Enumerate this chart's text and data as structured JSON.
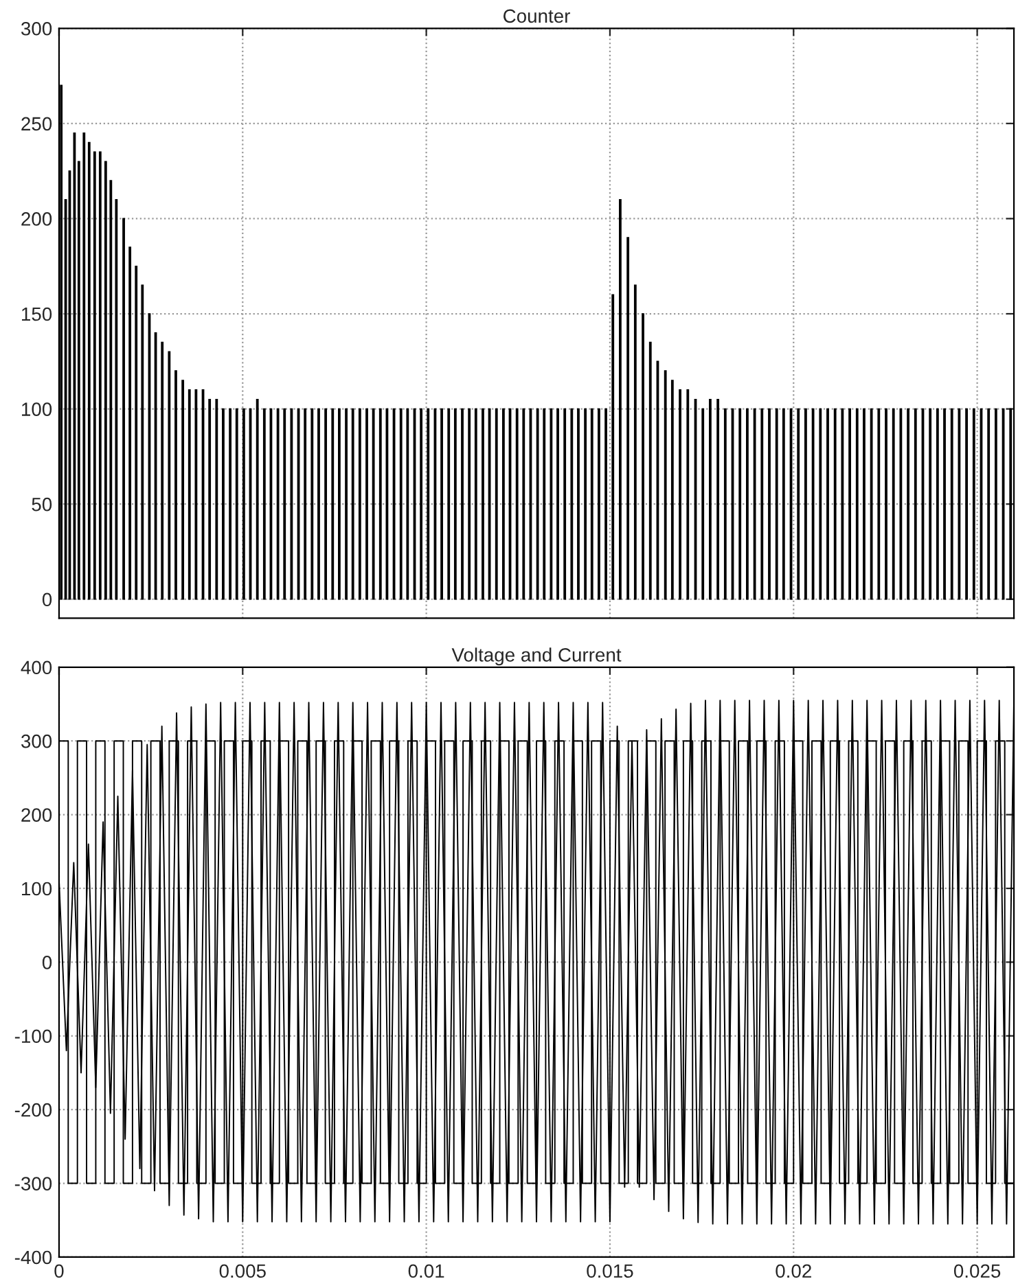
{
  "chart_data": [
    {
      "type": "bar",
      "title": "Counter",
      "xlim": [
        0,
        0.026
      ],
      "ylim": [
        -10,
        300
      ],
      "xticks": [
        0,
        0.005,
        0.01,
        0.015,
        0.02,
        0.025
      ],
      "yticks": [
        0,
        50,
        100,
        150,
        200,
        250,
        300
      ],
      "tick_labels": "y",
      "grid": true,
      "series": [
        {
          "color": "#000000",
          "x": [
            6e-05,
            0.00018,
            0.00029,
            0.00042,
            0.00054,
            0.00068,
            0.00082,
            0.00097,
            0.00112,
            0.00127,
            0.00141,
            0.00156,
            0.00176,
            0.00193,
            0.0021,
            0.00227,
            0.00246,
            0.00263,
            0.00281,
            0.003,
            0.00318,
            0.00337,
            0.00355,
            0.00373,
            0.00392,
            0.0041,
            0.00429,
            0.00447,
            0.00466,
            0.00484,
            0.00503,
            0.00521,
            0.0054,
            0.00559,
            0.00577,
            0.00596,
            0.00614,
            0.00633,
            0.00652,
            0.0067,
            0.00689,
            0.00707,
            0.00726,
            0.00745,
            0.00763,
            0.00782,
            0.008,
            0.00819,
            0.00838,
            0.00856,
            0.00875,
            0.00893,
            0.00912,
            0.00931,
            0.00949,
            0.00968,
            0.00986,
            0.01005,
            0.01024,
            0.01042,
            0.01061,
            0.01079,
            0.01098,
            0.01117,
            0.01135,
            0.01154,
            0.01172,
            0.01191,
            0.0121,
            0.01228,
            0.01247,
            0.01265,
            0.01284,
            0.01303,
            0.01321,
            0.0134,
            0.01358,
            0.01377,
            0.01396,
            0.01414,
            0.01433,
            0.01451,
            0.0147,
            0.01489,
            0.01508,
            0.01528,
            0.01549,
            0.01569,
            0.0159,
            0.0161,
            0.0163,
            0.01651,
            0.0167,
            0.01691,
            0.01712,
            0.01733,
            0.01753,
            0.01773,
            0.01794,
            0.01814,
            0.01834,
            0.01854,
            0.01874,
            0.01894,
            0.01914,
            0.01934,
            0.01954,
            0.01973,
            0.01993,
            0.02013,
            0.02033,
            0.02053,
            0.02073,
            0.02093,
            0.02113,
            0.02133,
            0.02153,
            0.02173,
            0.02192,
            0.02212,
            0.02232,
            0.02252,
            0.02272,
            0.02292,
            0.02312,
            0.02332,
            0.02352,
            0.02372,
            0.02392,
            0.02411,
            0.02431,
            0.02451,
            0.02471,
            0.02491,
            0.02511,
            0.02531,
            0.02551,
            0.02571,
            0.02591
          ],
          "values": [
            270,
            210,
            225,
            245,
            230,
            245,
            240,
            235,
            235,
            230,
            220,
            210,
            200,
            185,
            175,
            165,
            150,
            140,
            135,
            130,
            120,
            115,
            110,
            110,
            110,
            105,
            105,
            100,
            100,
            100,
            100,
            100,
            105,
            100,
            100,
            100,
            100,
            100,
            100,
            100,
            100,
            100,
            100,
            100,
            100,
            100,
            100,
            100,
            100,
            100,
            100,
            100,
            100,
            100,
            100,
            100,
            100,
            100,
            100,
            100,
            100,
            100,
            100,
            100,
            100,
            100,
            100,
            100,
            100,
            100,
            100,
            100,
            100,
            100,
            100,
            100,
            100,
            100,
            100,
            100,
            100,
            100,
            100,
            100,
            160,
            210,
            190,
            165,
            150,
            135,
            125,
            120,
            115,
            110,
            110,
            105,
            100,
            105,
            105,
            100,
            100,
            100,
            100,
            100,
            100,
            100,
            100,
            100,
            100,
            100,
            100,
            100,
            100,
            100,
            100,
            100,
            100,
            100,
            100,
            100,
            100,
            100,
            100,
            100,
            100,
            100,
            100,
            100,
            100,
            100,
            100,
            100,
            100,
            100,
            100,
            100,
            100,
            100,
            100
          ]
        }
      ]
    },
    {
      "type": "line",
      "title": "Voltage and Current",
      "xlim": [
        0,
        0.026
      ],
      "ylim": [
        -400,
        400
      ],
      "xticks": [
        0,
        0.005,
        0.01,
        0.015,
        0.02,
        0.025
      ],
      "yticks": [
        -400,
        -300,
        -200,
        -100,
        0,
        100,
        200,
        300,
        400
      ],
      "grid": true,
      "series": [
        {
          "type": "step",
          "color": "#000000",
          "x": [
            0,
            0.00025,
            0.0005,
            0.00075,
            0.001,
            0.00125,
            0.0015,
            0.00175,
            0.002,
            0.00225,
            0.0025,
            0.00275,
            0.003,
            0.00325,
            0.0035,
            0.00375,
            0.004,
            0.00425,
            0.0045,
            0.00475,
            0.005,
            0.00525,
            0.0055,
            0.00575,
            0.006,
            0.00625,
            0.0065,
            0.00675,
            0.007,
            0.00725,
            0.0075,
            0.00775,
            0.008,
            0.00825,
            0.0085,
            0.00875,
            0.009,
            0.00925,
            0.0095,
            0.00975,
            0.01,
            0.01025,
            0.0105,
            0.01075,
            0.011,
            0.01125,
            0.0115,
            0.01175,
            0.012,
            0.01225,
            0.0125,
            0.01275,
            0.013,
            0.01325,
            0.0135,
            0.01375,
            0.014,
            0.01425,
            0.0145,
            0.01475,
            0.015,
            0.01525,
            0.0155,
            0.01575,
            0.016,
            0.01625,
            0.0165,
            0.01675,
            0.017,
            0.01725,
            0.0175,
            0.01775,
            0.018,
            0.01825,
            0.0185,
            0.01875,
            0.019,
            0.01925,
            0.0195,
            0.01975,
            0.02,
            0.02025,
            0.0205,
            0.02075,
            0.021,
            0.02125,
            0.0215,
            0.02175,
            0.022,
            0.02225,
            0.0225,
            0.02275,
            0.023,
            0.02325,
            0.0235,
            0.02375,
            0.024,
            0.02425,
            0.0245,
            0.02475,
            0.025,
            0.02525,
            0.0255,
            0.02575,
            0.026
          ],
          "values": [
            300,
            -300,
            300,
            -300,
            300,
            -300,
            300,
            -300,
            300,
            -300,
            300,
            -300,
            300,
            -300,
            300,
            -300,
            300,
            -300,
            300,
            -300,
            300,
            -300,
            300,
            -300,
            300,
            -300,
            300,
            -300,
            300,
            -300,
            300,
            -300,
            300,
            -300,
            300,
            -300,
            300,
            -300,
            300,
            -300,
            300,
            -300,
            300,
            -300,
            300,
            -300,
            300,
            -300,
            300,
            -300,
            300,
            -300,
            300,
            -300,
            300,
            -300,
            300,
            -300,
            300,
            -300,
            300,
            -300,
            300,
            -300,
            300,
            -300,
            300,
            -300,
            300,
            -300,
            300,
            -300,
            300,
            -300,
            300,
            -300,
            300,
            -300,
            300,
            -300,
            300,
            -300,
            300,
            -300,
            300,
            -300,
            300,
            -300,
            300,
            -300,
            300,
            -300,
            300,
            -300,
            300,
            -300,
            300,
            -300,
            300,
            -300,
            300,
            -300,
            300,
            -300,
            300
          ]
        },
        {
          "color": "#000000",
          "x": [
            0,
            0.0002,
            0.0004,
            0.0006,
            0.0008,
            0.001,
            0.0012,
            0.0014,
            0.0016,
            0.0018,
            0.002,
            0.0022,
            0.0024,
            0.0026,
            0.0028,
            0.003,
            0.0032,
            0.0034,
            0.0036,
            0.0038,
            0.004,
            0.0042,
            0.0044,
            0.0046,
            0.0048,
            0.005,
            0.0052,
            0.0054,
            0.0056,
            0.0058,
            0.006,
            0.0062,
            0.0064,
            0.0066,
            0.0068,
            0.007,
            0.0072,
            0.0074,
            0.0076,
            0.0078,
            0.008,
            0.0082,
            0.0084,
            0.0086,
            0.0088,
            0.009,
            0.0092,
            0.0094,
            0.0096,
            0.0098,
            0.01,
            0.0102,
            0.0104,
            0.0106,
            0.0108,
            0.011,
            0.0112,
            0.0114,
            0.0116,
            0.0118,
            0.012,
            0.0122,
            0.0124,
            0.0126,
            0.0128,
            0.013,
            0.0132,
            0.0134,
            0.0136,
            0.0138,
            0.014,
            0.0142,
            0.0144,
            0.0146,
            0.0148,
            0.015,
            0.0152,
            0.0154,
            0.0156,
            0.0158,
            0.016,
            0.0162,
            0.0164,
            0.0166,
            0.0168,
            0.017,
            0.0172,
            0.0174,
            0.0176,
            0.0178,
            0.018,
            0.0182,
            0.0184,
            0.0186,
            0.0188,
            0.019,
            0.0192,
            0.0194,
            0.0196,
            0.0198,
            0.02,
            0.0202,
            0.0204,
            0.0206,
            0.0208,
            0.021,
            0.0212,
            0.0214,
            0.0216,
            0.0218,
            0.022,
            0.0222,
            0.0224,
            0.0226,
            0.0228,
            0.023,
            0.0232,
            0.0234,
            0.0236,
            0.0238,
            0.024,
            0.0242,
            0.0244,
            0.0246,
            0.0248,
            0.025,
            0.0252,
            0.0254,
            0.0256,
            0.0258,
            0.026
          ],
          "values": [
            110,
            -120,
            135,
            -150,
            160,
            -170,
            190,
            -205,
            225,
            -240,
            260,
            -280,
            295,
            -310,
            320,
            -330,
            338,
            -343,
            346,
            -348,
            350,
            -352,
            352,
            -352,
            352,
            -352,
            352,
            -352,
            352,
            -352,
            352,
            -352,
            352,
            -352,
            352,
            -352,
            352,
            -352,
            352,
            -352,
            352,
            -352,
            352,
            -352,
            352,
            -352,
            352,
            -352,
            352,
            -352,
            352,
            -352,
            352,
            -352,
            352,
            -352,
            352,
            -352,
            352,
            -352,
            352,
            -352,
            352,
            -352,
            352,
            -352,
            352,
            -352,
            352,
            -352,
            352,
            -352,
            352,
            -352,
            352,
            -352,
            320,
            -305,
            300,
            -305,
            315,
            -322,
            330,
            -338,
            343,
            -348,
            351,
            -353,
            355,
            -355,
            355,
            -355,
            355,
            -355,
            355,
            -355,
            355,
            -355,
            355,
            -355,
            355,
            -355,
            355,
            -355,
            355,
            -355,
            355,
            -355,
            355,
            -355,
            355,
            -355,
            355,
            -355,
            355,
            -355,
            355,
            -355,
            355,
            -355,
            355,
            -355,
            355,
            -355,
            355,
            -355,
            355,
            -355,
            355,
            -355,
            355
          ]
        }
      ]
    }
  ]
}
